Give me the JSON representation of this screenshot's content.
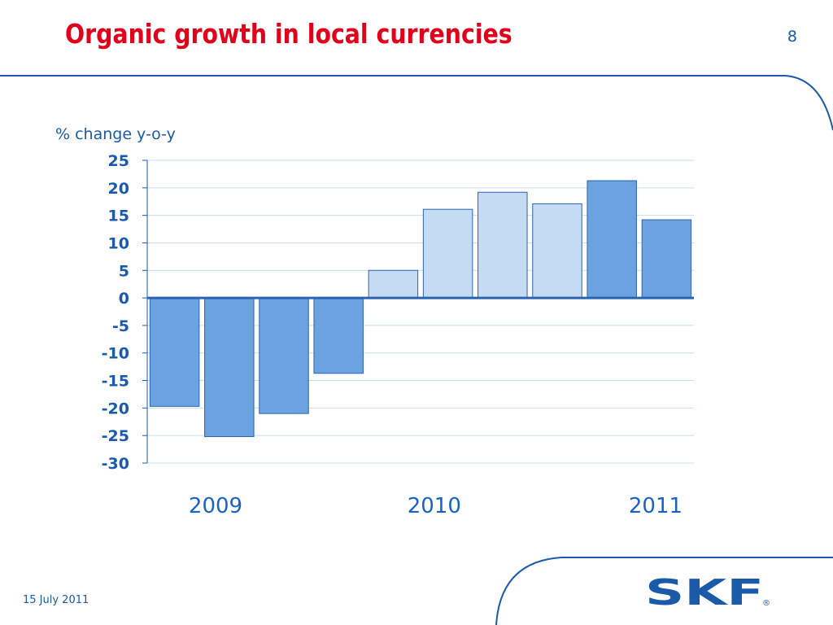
{
  "slide": {
    "title": "Organic growth in local currencies",
    "page_number": "8",
    "date": "15 July 2011",
    "logo_text": "SKF"
  },
  "colors": {
    "title": "#e2001a",
    "text_blue": "#1a5aa8",
    "bar_dark": "#6ba3e0",
    "bar_light": "#c5dbf3",
    "bar_stroke": "#2a64b0",
    "gridline": "#c9dcee",
    "frame": "#1a5aa8"
  },
  "chart_data": {
    "type": "bar",
    "ylabel": "% change y-o-y",
    "ylim": [
      -30,
      25
    ],
    "y_ticks": [
      25,
      20,
      15,
      10,
      5,
      0,
      -5,
      -10,
      -15,
      -20,
      -25,
      -30
    ],
    "grid": true,
    "year_labels": [
      {
        "text": "2009",
        "bar_index": 0.75
      },
      {
        "text": "2010",
        "bar_index": 4.75
      },
      {
        "text": "2011",
        "bar_index": 8.8
      }
    ],
    "values": [
      -19.7,
      -25.2,
      -21.0,
      -13.7,
      5.0,
      16.1,
      19.2,
      17.1,
      21.3,
      14.2
    ],
    "shades": [
      "dark",
      "dark",
      "dark",
      "dark",
      "light",
      "light",
      "light",
      "light",
      "dark",
      "dark"
    ]
  }
}
